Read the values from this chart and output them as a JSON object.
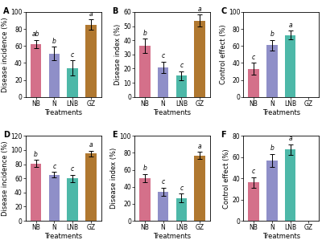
{
  "panels": [
    {
      "label": "A",
      "ylabel": "Disease incidence (%)",
      "ylim": [
        0,
        100
      ],
      "yticks": [
        0,
        20,
        40,
        60,
        80,
        100
      ],
      "values": [
        62,
        51,
        34,
        85
      ],
      "errors": [
        5,
        8,
        9,
        6
      ],
      "letters": [
        "ab",
        "b",
        "c",
        "a"
      ]
    },
    {
      "label": "B",
      "ylabel": "Disease index (%)",
      "ylim": [
        0,
        60
      ],
      "yticks": [
        0,
        10,
        20,
        30,
        40,
        50,
        60
      ],
      "values": [
        36,
        21,
        15,
        54
      ],
      "errors": [
        5,
        4,
        3,
        4
      ],
      "letters": [
        "b",
        "c",
        "c",
        "a"
      ]
    },
    {
      "label": "C",
      "ylabel": "Control effect (%)",
      "ylim": [
        0,
        100
      ],
      "yticks": [
        0,
        20,
        40,
        60,
        80,
        100
      ],
      "values": [
        33,
        61,
        73,
        0
      ],
      "errors": [
        7,
        6,
        5,
        0
      ],
      "letters": [
        "c",
        "b",
        "a",
        ""
      ]
    },
    {
      "label": "D",
      "ylabel": "Disease incidence (%)",
      "ylim": [
        0,
        120
      ],
      "yticks": [
        0,
        20,
        40,
        60,
        80,
        100,
        120
      ],
      "values": [
        81,
        65,
        60,
        95
      ],
      "errors": [
        5,
        4,
        5,
        4
      ],
      "letters": [
        "b",
        "c",
        "c",
        "a"
      ]
    },
    {
      "label": "E",
      "ylabel": "Disease index (%)",
      "ylim": [
        0,
        100
      ],
      "yticks": [
        0,
        20,
        40,
        60,
        80,
        100
      ],
      "values": [
        50,
        34,
        27,
        77
      ],
      "errors": [
        5,
        5,
        5,
        4
      ],
      "letters": [
        "b",
        "c",
        "c",
        "a"
      ]
    },
    {
      "label": "F",
      "ylabel": "Control effect (%)",
      "ylim": [
        0,
        80
      ],
      "yticks": [
        0,
        20,
        40,
        60,
        80
      ],
      "values": [
        36,
        57,
        67,
        0
      ],
      "errors": [
        5,
        6,
        5,
        0
      ],
      "letters": [
        "c",
        "b",
        "a",
        ""
      ]
    }
  ],
  "categories": [
    "NB",
    "N",
    "LNB",
    "GZ"
  ],
  "bar_colors": [
    "#d4708a",
    "#8f8fc8",
    "#4db8a8",
    "#b07830"
  ],
  "xlabel": "Treatments",
  "fontsize": 5.5,
  "label_fontsize": 6.0,
  "panel_label_fontsize": 7.0
}
